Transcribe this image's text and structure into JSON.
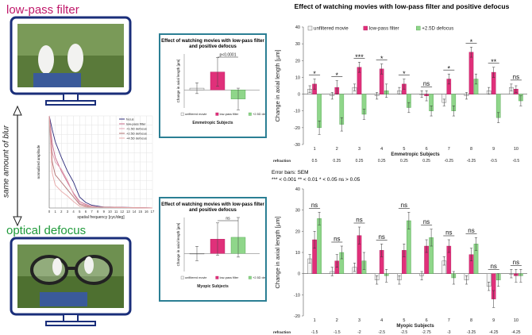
{
  "panel_labels": {
    "low_pass": "low-pass filter",
    "optical": "optical defocus",
    "same_blur": "same amount of blur"
  },
  "colors": {
    "unfiltered": "#f4f4f4",
    "lowpass": "#e0307a",
    "defocus": "#8fd68a",
    "lowpass_text": "#c0186a",
    "optical_text": "#1f9a3a",
    "box_border": "#2b7f94",
    "screen_frame": "#1a2e7a"
  },
  "chart_data": [
    {
      "type": "line",
      "xlabel": "spatial frequency [cyc/deg]",
      "ylabel": "normalized amplitude",
      "x_ticks": [
        "0",
        "1",
        "2",
        "3",
        "4",
        "5",
        "6",
        "7",
        "8",
        "9",
        "10",
        "11",
        "12",
        "13",
        "14",
        "15",
        "16",
        "17"
      ],
      "xlim": [
        0,
        17
      ],
      "ylim": [
        0,
        1
      ],
      "legend": {
        "position": "top-right"
      },
      "series": [
        {
          "name": "focus",
          "color": "#2d2b7a",
          "x": [
            0,
            0.5,
            1,
            2,
            3,
            4,
            5,
            6,
            7,
            8,
            9,
            10,
            17
          ],
          "y": [
            1,
            0.85,
            0.72,
            0.55,
            0.4,
            0.28,
            0.12,
            0.06,
            0.03,
            0.02,
            0.01,
            0.01,
            0
          ]
        },
        {
          "name": "low-pass filter",
          "color": "#c9698a",
          "x": [
            0,
            0.5,
            1,
            2,
            3,
            4,
            5,
            6,
            7,
            8,
            17
          ],
          "y": [
            1,
            0.7,
            0.55,
            0.4,
            0.28,
            0.16,
            0.07,
            0.04,
            0.02,
            0.01,
            0
          ]
        },
        {
          "name": "+1.5D defocus",
          "color": "#e0a0b0",
          "x": [
            0,
            0.5,
            1,
            2,
            3,
            4,
            5,
            6,
            7,
            8,
            17
          ],
          "y": [
            1,
            0.6,
            0.5,
            0.42,
            0.3,
            0.15,
            0.05,
            0.03,
            0.02,
            0.01,
            0
          ]
        },
        {
          "name": "+2.5D defocus",
          "color": "#b07070",
          "x": [
            0,
            0.5,
            1,
            2,
            3,
            4,
            5,
            6,
            7,
            17
          ],
          "y": [
            1,
            0.5,
            0.36,
            0.28,
            0.2,
            0.12,
            0.04,
            0.02,
            0.01,
            0
          ]
        },
        {
          "name": "+4.5D defocus",
          "color": "#e8a8a8",
          "x": [
            0,
            0.5,
            1,
            2,
            3,
            4,
            5,
            6,
            17
          ],
          "y": [
            1,
            0.38,
            0.25,
            0.18,
            0.13,
            0.07,
            0.02,
            0.01,
            0
          ]
        }
      ]
    },
    {
      "type": "bar",
      "title": "Effect of watching movies with low-pass filter and positive defocus",
      "subtitle": "Emmetropic Subjects",
      "ylabel": "Change in axial length [µm]",
      "ylim": [
        -10,
        20
      ],
      "categories": [
        ""
      ],
      "series": [
        {
          "name": "unfiltered movie",
          "values": [
            1
          ],
          "error": [
            3
          ]
        },
        {
          "name": "low-pass filter",
          "values": [
            10
          ],
          "error": [
            8
          ]
        },
        {
          "name": "+2.5D defocus",
          "values": [
            -5
          ],
          "error": [
            6
          ]
        }
      ],
      "annotation": "p<0.0001"
    },
    {
      "type": "bar",
      "title": "Effect of watching movies with low-pass filter and positive defocus",
      "subtitle": "Myopic Subjects",
      "ylabel": "Change in axial length [µm]",
      "ylim": [
        -10,
        20
      ],
      "categories": [
        ""
      ],
      "series": [
        {
          "name": "unfiltered movie",
          "values": [
            0
          ],
          "error": [
            4
          ]
        },
        {
          "name": "low-pass filter",
          "values": [
            8
          ],
          "error": [
            9
          ]
        },
        {
          "name": "+2.5D defocus",
          "values": [
            9
          ],
          "error": [
            11
          ]
        }
      ],
      "annotation": "ns"
    },
    {
      "type": "bar",
      "title": "Effect of watching movies with low-pass filter and positive defocus",
      "xlabel": "Emmetropic Subjects",
      "ylabel": "Change in axial length [µm]",
      "ylim": [
        -30,
        40
      ],
      "y_ticks": [
        -30,
        -20,
        -10,
        0,
        10,
        20,
        30,
        40
      ],
      "legend": {
        "position": "top"
      },
      "categories": [
        "1",
        "2",
        "3",
        "4",
        "5",
        "6",
        "7",
        "8",
        "9",
        "10"
      ],
      "refraction_label": "refraction",
      "refraction": [
        "0.5",
        "0.25",
        "0.25",
        "0.25",
        "0.25",
        "0.25",
        "-0.25",
        "-0.25",
        "-0.5",
        "-0.5"
      ],
      "series": [
        {
          "name": "unfiltered movie",
          "values": [
            3,
            -1,
            4,
            -1,
            2,
            0,
            -5,
            -1,
            2,
            4
          ],
          "error": [
            2,
            2,
            2,
            2,
            2,
            2,
            2,
            2,
            2,
            2
          ]
        },
        {
          "name": "low-pass filter",
          "values": [
            6,
            4,
            16,
            15,
            6,
            -1,
            9,
            25,
            13,
            3
          ],
          "error": [
            3,
            4,
            3,
            3,
            3,
            3,
            3,
            3,
            3,
            2
          ]
        },
        {
          "name": "+2.5D defocus",
          "values": [
            -20,
            -18,
            -12,
            2,
            -8,
            -10,
            -10,
            9,
            -14,
            -4
          ],
          "error": [
            4,
            4,
            3,
            4,
            3,
            3,
            3,
            3,
            3,
            3
          ]
        }
      ],
      "significance": [
        "*",
        "*",
        "***",
        "*",
        "*",
        "ns",
        "*",
        "*",
        "**",
        "ns"
      ]
    },
    {
      "type": "bar",
      "xlabel": "Myopic Subjects",
      "ylabel": "Change in axial length [µm]",
      "ylim": [
        -20,
        40
      ],
      "y_ticks": [
        -20,
        -10,
        0,
        10,
        20,
        30,
        40
      ],
      "categories": [
        "1",
        "2",
        "3",
        "4",
        "5",
        "6",
        "7",
        "8",
        "9",
        "10"
      ],
      "refraction_label": "refraction",
      "refraction": [
        "-1.5",
        "-1.5",
        "-2",
        "-2.5",
        "-2.5",
        "-2.75",
        "-3",
        "-3.25",
        "-4.25",
        "-4.25"
      ],
      "series": [
        {
          "name": "unfiltered movie",
          "values": [
            7,
            1,
            3,
            -3,
            -3,
            -1,
            6,
            -3,
            -6,
            0
          ],
          "error": [
            2,
            2,
            2,
            2,
            2,
            2,
            2,
            2,
            2,
            2
          ]
        },
        {
          "name": "low-pass filter",
          "values": [
            16,
            6,
            18,
            11,
            11,
            13,
            13,
            9,
            -12,
            -1
          ],
          "error": [
            4,
            3,
            4,
            3,
            3,
            3,
            3,
            3,
            4,
            3
          ]
        },
        {
          "name": "+2.5D defocus",
          "values": [
            26,
            10,
            6,
            -1,
            25,
            17,
            -2,
            14,
            -3,
            -1
          ],
          "error": [
            3,
            3,
            4,
            3,
            4,
            4,
            3,
            3,
            3,
            3
          ]
        }
      ],
      "significance": [
        "ns",
        "ns",
        "ns",
        "ns",
        "ns",
        "ns",
        "ns",
        "ns",
        "ns",
        "ns"
      ]
    }
  ],
  "notes": {
    "error_bars": "Error bars: SEM",
    "significance_key": "*** < 0.001 ** < 0.01 * < 0.05 ns > 0.05"
  }
}
